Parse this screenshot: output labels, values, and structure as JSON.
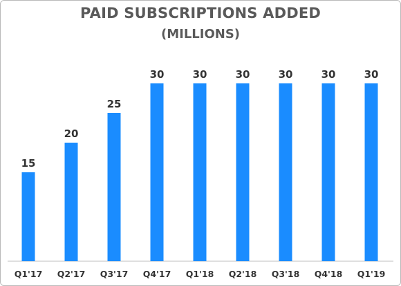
{
  "chart_data": {
    "type": "bar",
    "title": "PAID SUBSCRIPTIONS ADDED",
    "subtitle": "(MILLIONS)",
    "categories": [
      "Q1'17",
      "Q2'17",
      "Q3'17",
      "Q4'17",
      "Q1'18",
      "Q2'18",
      "Q3'18",
      "Q4'18",
      "Q1'19"
    ],
    "values": [
      15,
      20,
      25,
      30,
      30,
      30,
      30,
      30,
      30
    ],
    "ylim": [
      0,
      35
    ],
    "grid": false,
    "bar_color": "#1a8cff",
    "axis_color": "#bfbfbf"
  }
}
